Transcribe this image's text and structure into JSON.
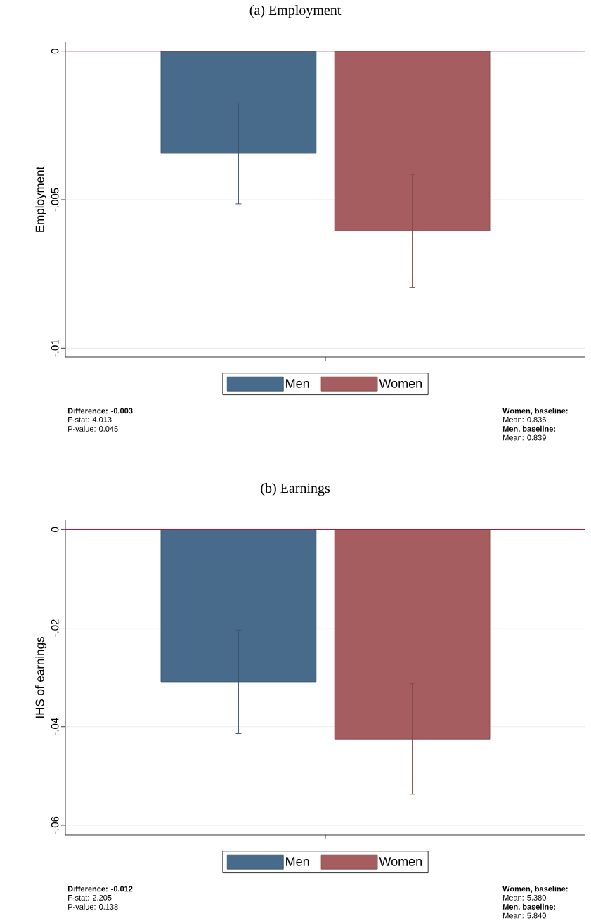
{
  "chart_data": [
    {
      "type": "bar",
      "title": "(a) Employment",
      "ylabel": "Employment",
      "categories": [
        null
      ],
      "series": [
        {
          "name": "Men",
          "color": "#486b8c",
          "values": [
            -0.00344
          ],
          "errors": [
            0.0017
          ]
        },
        {
          "name": "Women",
          "color": "#a55d60",
          "values": [
            -0.00605
          ],
          "errors": [
            0.0019
          ]
        }
      ],
      "ylim": [
        -0.0103,
        0.0003
      ],
      "yticks": [
        0,
        {
          "value": -0.005,
          "label": "-.005"
        },
        {
          "value": -0.01,
          "label": "-.01"
        }
      ],
      "grid": "y",
      "legend": "bottom",
      "ref_lines": [
        {
          "axis": "y",
          "value": 0,
          "color": "#c8102e"
        }
      ],
      "annotations": [
        "**Difference: -0.003**",
        "F-stat: 4.013",
        "P-value: 0.045",
        "**Women, baseline:**",
        "Mean: 0.836",
        "**Men, baseline:**",
        "Mean: 0.839"
      ]
    },
    {
      "type": "bar",
      "title": "(b) Earnings",
      "ylabel": "IHS of earnings",
      "categories": [
        null
      ],
      "series": [
        {
          "name": "Men",
          "color": "#486b8c",
          "values": [
            -0.0309
          ],
          "errors": [
            0.0105
          ]
        },
        {
          "name": "Women",
          "color": "#a55d60",
          "values": [
            -0.0425
          ],
          "errors": [
            0.0112
          ]
        }
      ],
      "ylim": [
        -0.062,
        0.0019
      ],
      "yticks": [
        0,
        {
          "value": -0.02,
          "label": "-.02"
        },
        {
          "value": -0.04,
          "label": "-.04"
        },
        {
          "value": -0.06,
          "label": "-.06"
        }
      ],
      "grid": "y",
      "legend": "bottom",
      "ref_lines": [
        {
          "axis": "y",
          "value": 0,
          "color": "#c8102e"
        }
      ],
      "annotations": [
        "**Difference: -0.012**",
        "F-stat: 2.205",
        "P-value: 0.138",
        "**Women, baseline:**",
        "Mean: 5.380",
        "**Men, baseline:**",
        "Mean: 5.840"
      ]
    }
  ]
}
